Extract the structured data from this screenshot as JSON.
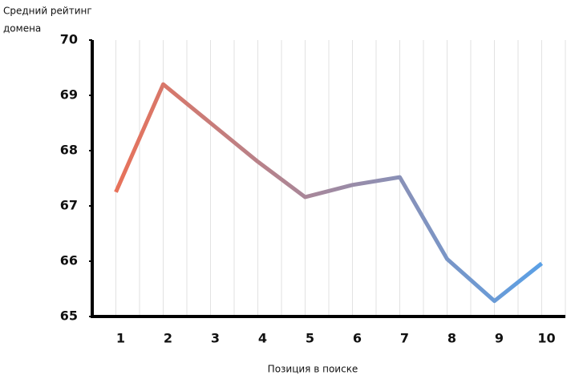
{
  "chart_data": {
    "type": "line",
    "y_label": "Средний рейтинг домена",
    "x_label": "Позиция в поиске",
    "categories": [
      "1",
      "2",
      "3",
      "4",
      "5",
      "6",
      "7",
      "8",
      "9",
      "10"
    ],
    "values": [
      67.25,
      69.2,
      68.5,
      67.8,
      67.16,
      67.38,
      67.52,
      66.04,
      65.28,
      65.96
    ],
    "gradient": [
      "#e8725a",
      "#5aa0e6"
    ],
    "ylim": [
      65,
      70
    ],
    "yticks": [
      65,
      66,
      67,
      68,
      69,
      70
    ],
    "grid": true
  }
}
